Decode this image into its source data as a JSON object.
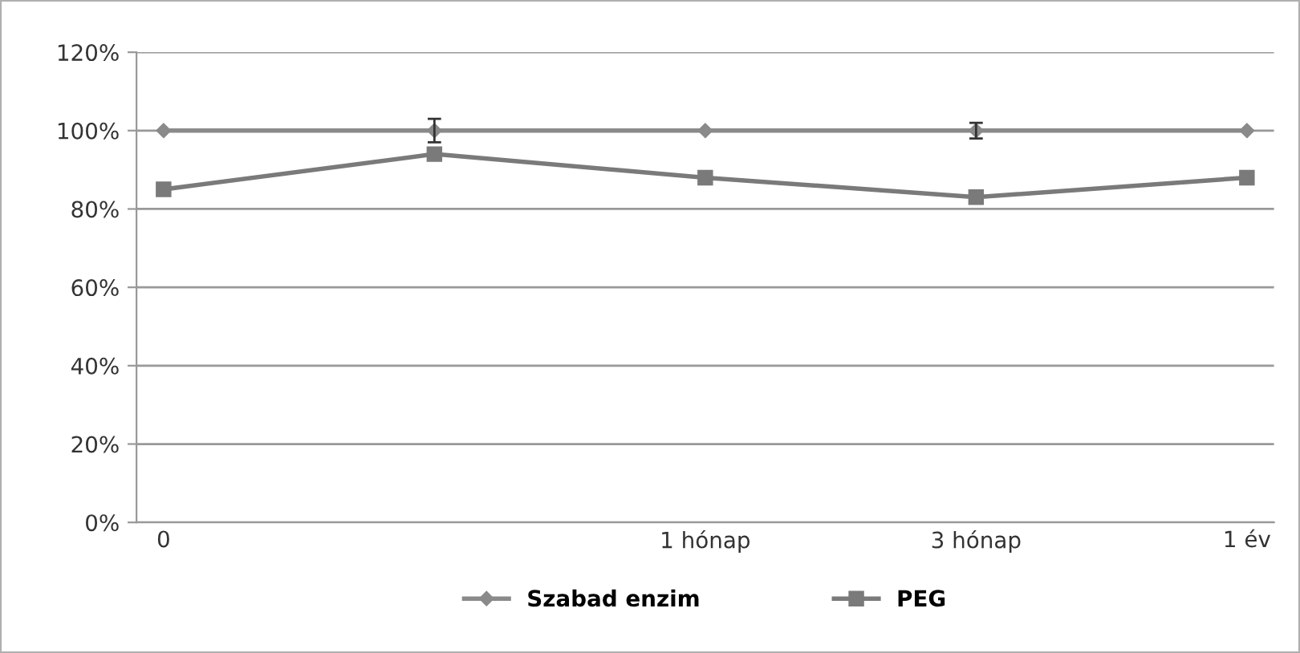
{
  "chart_data": {
    "type": "line",
    "categories": [
      "0",
      null,
      "1 hónap",
      "3 hónap",
      "1 év"
    ],
    "series": [
      {
        "name": "Szabad enzim",
        "color": "#8a8a8a",
        "values": [
          100,
          100,
          100,
          100,
          100
        ],
        "errors": [
          null,
          3,
          null,
          2,
          null
        ],
        "marker": "diamond"
      },
      {
        "name": "PEG",
        "color": "#7a7a7a",
        "values": [
          85,
          94,
          88,
          83,
          88
        ],
        "marker": "square"
      }
    ],
    "ylim": [
      0,
      120
    ],
    "yticks": [
      {
        "value": 0,
        "label": "0%"
      },
      {
        "value": 20,
        "label": "20%"
      },
      {
        "value": 40,
        "label": "40%"
      },
      {
        "value": 60,
        "label": "60%"
      },
      {
        "value": 80,
        "label": "80%"
      },
      {
        "value": 100,
        "label": "100%"
      },
      {
        "value": 120,
        "label": "120%"
      }
    ],
    "grid": "y",
    "legend": "bottom",
    "line_style": "solid"
  }
}
